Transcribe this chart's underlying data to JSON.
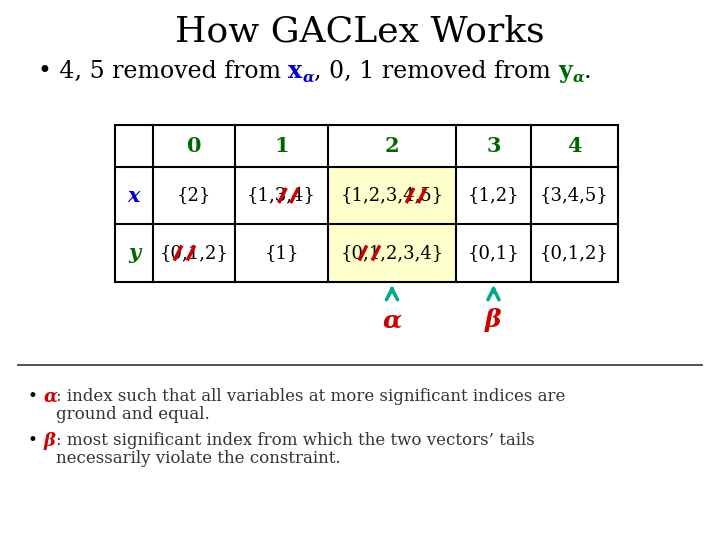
{
  "title": "How GACLex Works",
  "title_fontsize": 26,
  "title_color": "#000000",
  "col_headers": [
    "0",
    "1",
    "2",
    "3",
    "4"
  ],
  "row_headers": [
    "x",
    "y"
  ],
  "cells_x": [
    "{2}",
    "{1,3,4}",
    "{1,2,3,4,5}",
    "{1,2}",
    "{3,4,5}"
  ],
  "cells_y": [
    "{0,1,2}",
    "{1}",
    "{0,1,2,3,4}",
    "{0,1}",
    "{0,1,2}"
  ],
  "highlight_color": "#ffffcc",
  "alpha_label": "α",
  "beta_label": "β",
  "arrow_color": "#00aa88",
  "strike_color": "#cc0000",
  "alpha_color": "#cc0000",
  "beta_color": "#cc0000",
  "x_color": "#0000cc",
  "y_color": "#006600",
  "col_header_color": "#006600",
  "row_header_x_color": "#0000cc",
  "row_header_y_color": "#006600",
  "footer_text_color": "#555555",
  "bullet2_alpha": "α",
  "bullet2_text": ": index such that all variables at more significant indices are\nground and equal.",
  "bullet3_beta": "β",
  "bullet3_text": ": most significant index from which the two vectors’ tails\nnecessarily violate the constraint."
}
